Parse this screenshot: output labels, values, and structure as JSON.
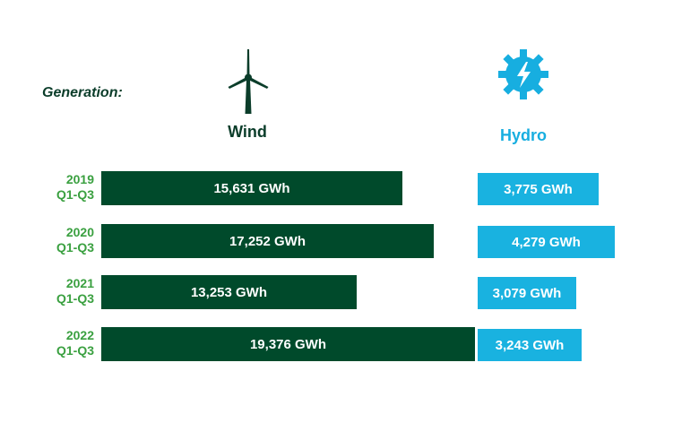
{
  "generation_label": "Generation:",
  "wind": {
    "title": "Wind",
    "icon": "wind-turbine-icon",
    "color": "#004a2b"
  },
  "hydro": {
    "title": "Hydro",
    "icon": "hydro-turbine-icon",
    "color": "#19b2e0"
  },
  "label_color": "#3aa040",
  "rows": [
    {
      "year": "2019",
      "period": "Q1-Q3",
      "wind_label": "15,631 GWh",
      "hydro_label": "3,775 GWh"
    },
    {
      "year": "2020",
      "period": "Q1-Q3",
      "wind_label": "17,252 GWh",
      "hydro_label": "4,279 GWh"
    },
    {
      "year": "2021",
      "period": "Q1-Q3",
      "wind_label": "13,253 GWh",
      "hydro_label": "3,079 GWh"
    },
    {
      "year": "2022",
      "period": "Q1-Q3",
      "wind_label": "19,376 GWh",
      "hydro_label": "3,243 GWh"
    }
  ],
  "chart_data": {
    "type": "bar",
    "categories": [
      "2019 Q1-Q3",
      "2020 Q1-Q3",
      "2021 Q1-Q3",
      "2022 Q1-Q3"
    ],
    "series": [
      {
        "name": "Wind",
        "values": [
          15631,
          17252,
          13253,
          19376
        ]
      },
      {
        "name": "Hydro",
        "values": [
          3775,
          4279,
          3079,
          3243
        ]
      }
    ],
    "unit": "GWh",
    "title": "",
    "xlabel": "",
    "ylabel": ""
  }
}
